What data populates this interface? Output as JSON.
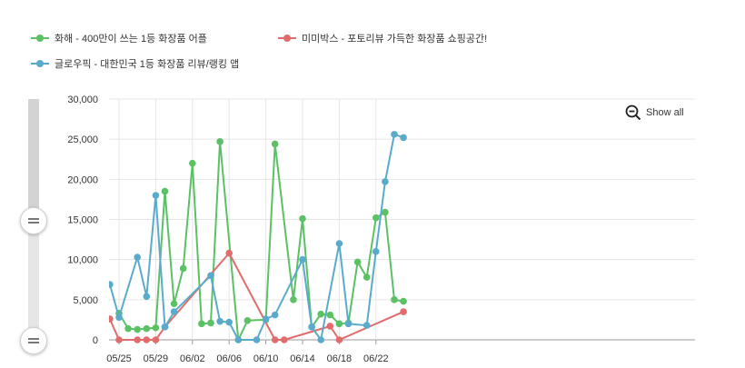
{
  "legend": [
    {
      "label": "화해 - 400만이 쓰는 1등 화장품 어플",
      "color": "#5cc165"
    },
    {
      "label": "미미박스 - 포토리뷰 가득한 화장품 쇼핑공간!",
      "color": "#e06c6c"
    },
    {
      "label": "글로우픽 - 대한민국 1등 화장품 리뷰/랭킹 앱",
      "color": "#5aabcb"
    }
  ],
  "controls": {
    "show_all": "Show all"
  },
  "chart_data": {
    "type": "line",
    "title": "",
    "xlabel": "",
    "ylabel": "",
    "ylim": [
      0,
      30000
    ],
    "y_ticks": [
      "0",
      "5,000",
      "10,000",
      "15,000",
      "20,000",
      "25,000",
      "30,000"
    ],
    "x_ticks": [
      "05/25",
      "05/29",
      "06/02",
      "06/06",
      "06/10",
      "06/14",
      "06/18",
      "06/22"
    ],
    "grid": true,
    "legend_position": "top-left",
    "series": [
      {
        "name": "화해 - 400만이 쓰는 1등 화장품 어플",
        "color": "#5cc165",
        "points": [
          [
            "05/25",
            3300
          ],
          [
            "05/26",
            1400
          ],
          [
            "05/27",
            1300
          ],
          [
            "05/28",
            1400
          ],
          [
            "05/29",
            1500
          ],
          [
            "05/30",
            18500
          ],
          [
            "05/31",
            4500
          ],
          [
            "06/01",
            8900
          ],
          [
            "06/02",
            22000
          ],
          [
            "06/03",
            2000
          ],
          [
            "06/04",
            2100
          ],
          [
            "06/05",
            24700
          ],
          [
            "06/07",
            0
          ],
          [
            "06/08",
            2400
          ],
          [
            "06/10",
            2500
          ],
          [
            "06/11",
            24400
          ],
          [
            "06/13",
            5000
          ],
          [
            "06/14",
            15100
          ],
          [
            "06/15",
            1600
          ],
          [
            "06/16",
            3200
          ],
          [
            "06/17",
            3100
          ],
          [
            "06/18",
            2000
          ],
          [
            "06/19",
            2100
          ],
          [
            "06/20",
            9700
          ],
          [
            "06/21",
            7800
          ],
          [
            "06/22",
            15200
          ],
          [
            "06/23",
            15900
          ],
          [
            "06/24",
            5000
          ],
          [
            "06/25",
            4800
          ]
        ]
      },
      {
        "name": "미미박스 - 포토리뷰 가득한 화장품 쇼핑공간!",
        "color": "#e06c6c",
        "points": [
          [
            "05/24",
            2600
          ],
          [
            "05/25",
            0
          ],
          [
            "05/27",
            0
          ],
          [
            "05/28",
            0
          ],
          [
            "05/29",
            0
          ],
          [
            "05/30",
            1600
          ],
          [
            "06/06",
            10800
          ],
          [
            "06/11",
            0
          ],
          [
            "06/12",
            0
          ],
          [
            "06/17",
            1700
          ],
          [
            "06/18",
            0
          ],
          [
            "06/25",
            3500
          ]
        ]
      },
      {
        "name": "글로우픽 - 대한민국 1등 화장품 리뷰/랭킹 앱",
        "color": "#5aabcb",
        "points": [
          [
            "05/24",
            6900
          ],
          [
            "05/25",
            2800
          ],
          [
            "05/27",
            10300
          ],
          [
            "05/28",
            5400
          ],
          [
            "05/29",
            18000
          ],
          [
            "05/30",
            1600
          ],
          [
            "05/31",
            3500
          ],
          [
            "06/04",
            8000
          ],
          [
            "06/05",
            2300
          ],
          [
            "06/06",
            2200
          ],
          [
            "06/07",
            0
          ],
          [
            "06/09",
            0
          ],
          [
            "06/10",
            2600
          ],
          [
            "06/11",
            3100
          ],
          [
            "06/14",
            10000
          ],
          [
            "06/15",
            1600
          ],
          [
            "06/16",
            0
          ],
          [
            "06/18",
            12000
          ],
          [
            "06/19",
            2000
          ],
          [
            "06/21",
            1800
          ],
          [
            "06/22",
            11000
          ],
          [
            "06/23",
            19700
          ],
          [
            "06/24",
            25600
          ],
          [
            "06/25",
            25200
          ]
        ]
      }
    ]
  }
}
